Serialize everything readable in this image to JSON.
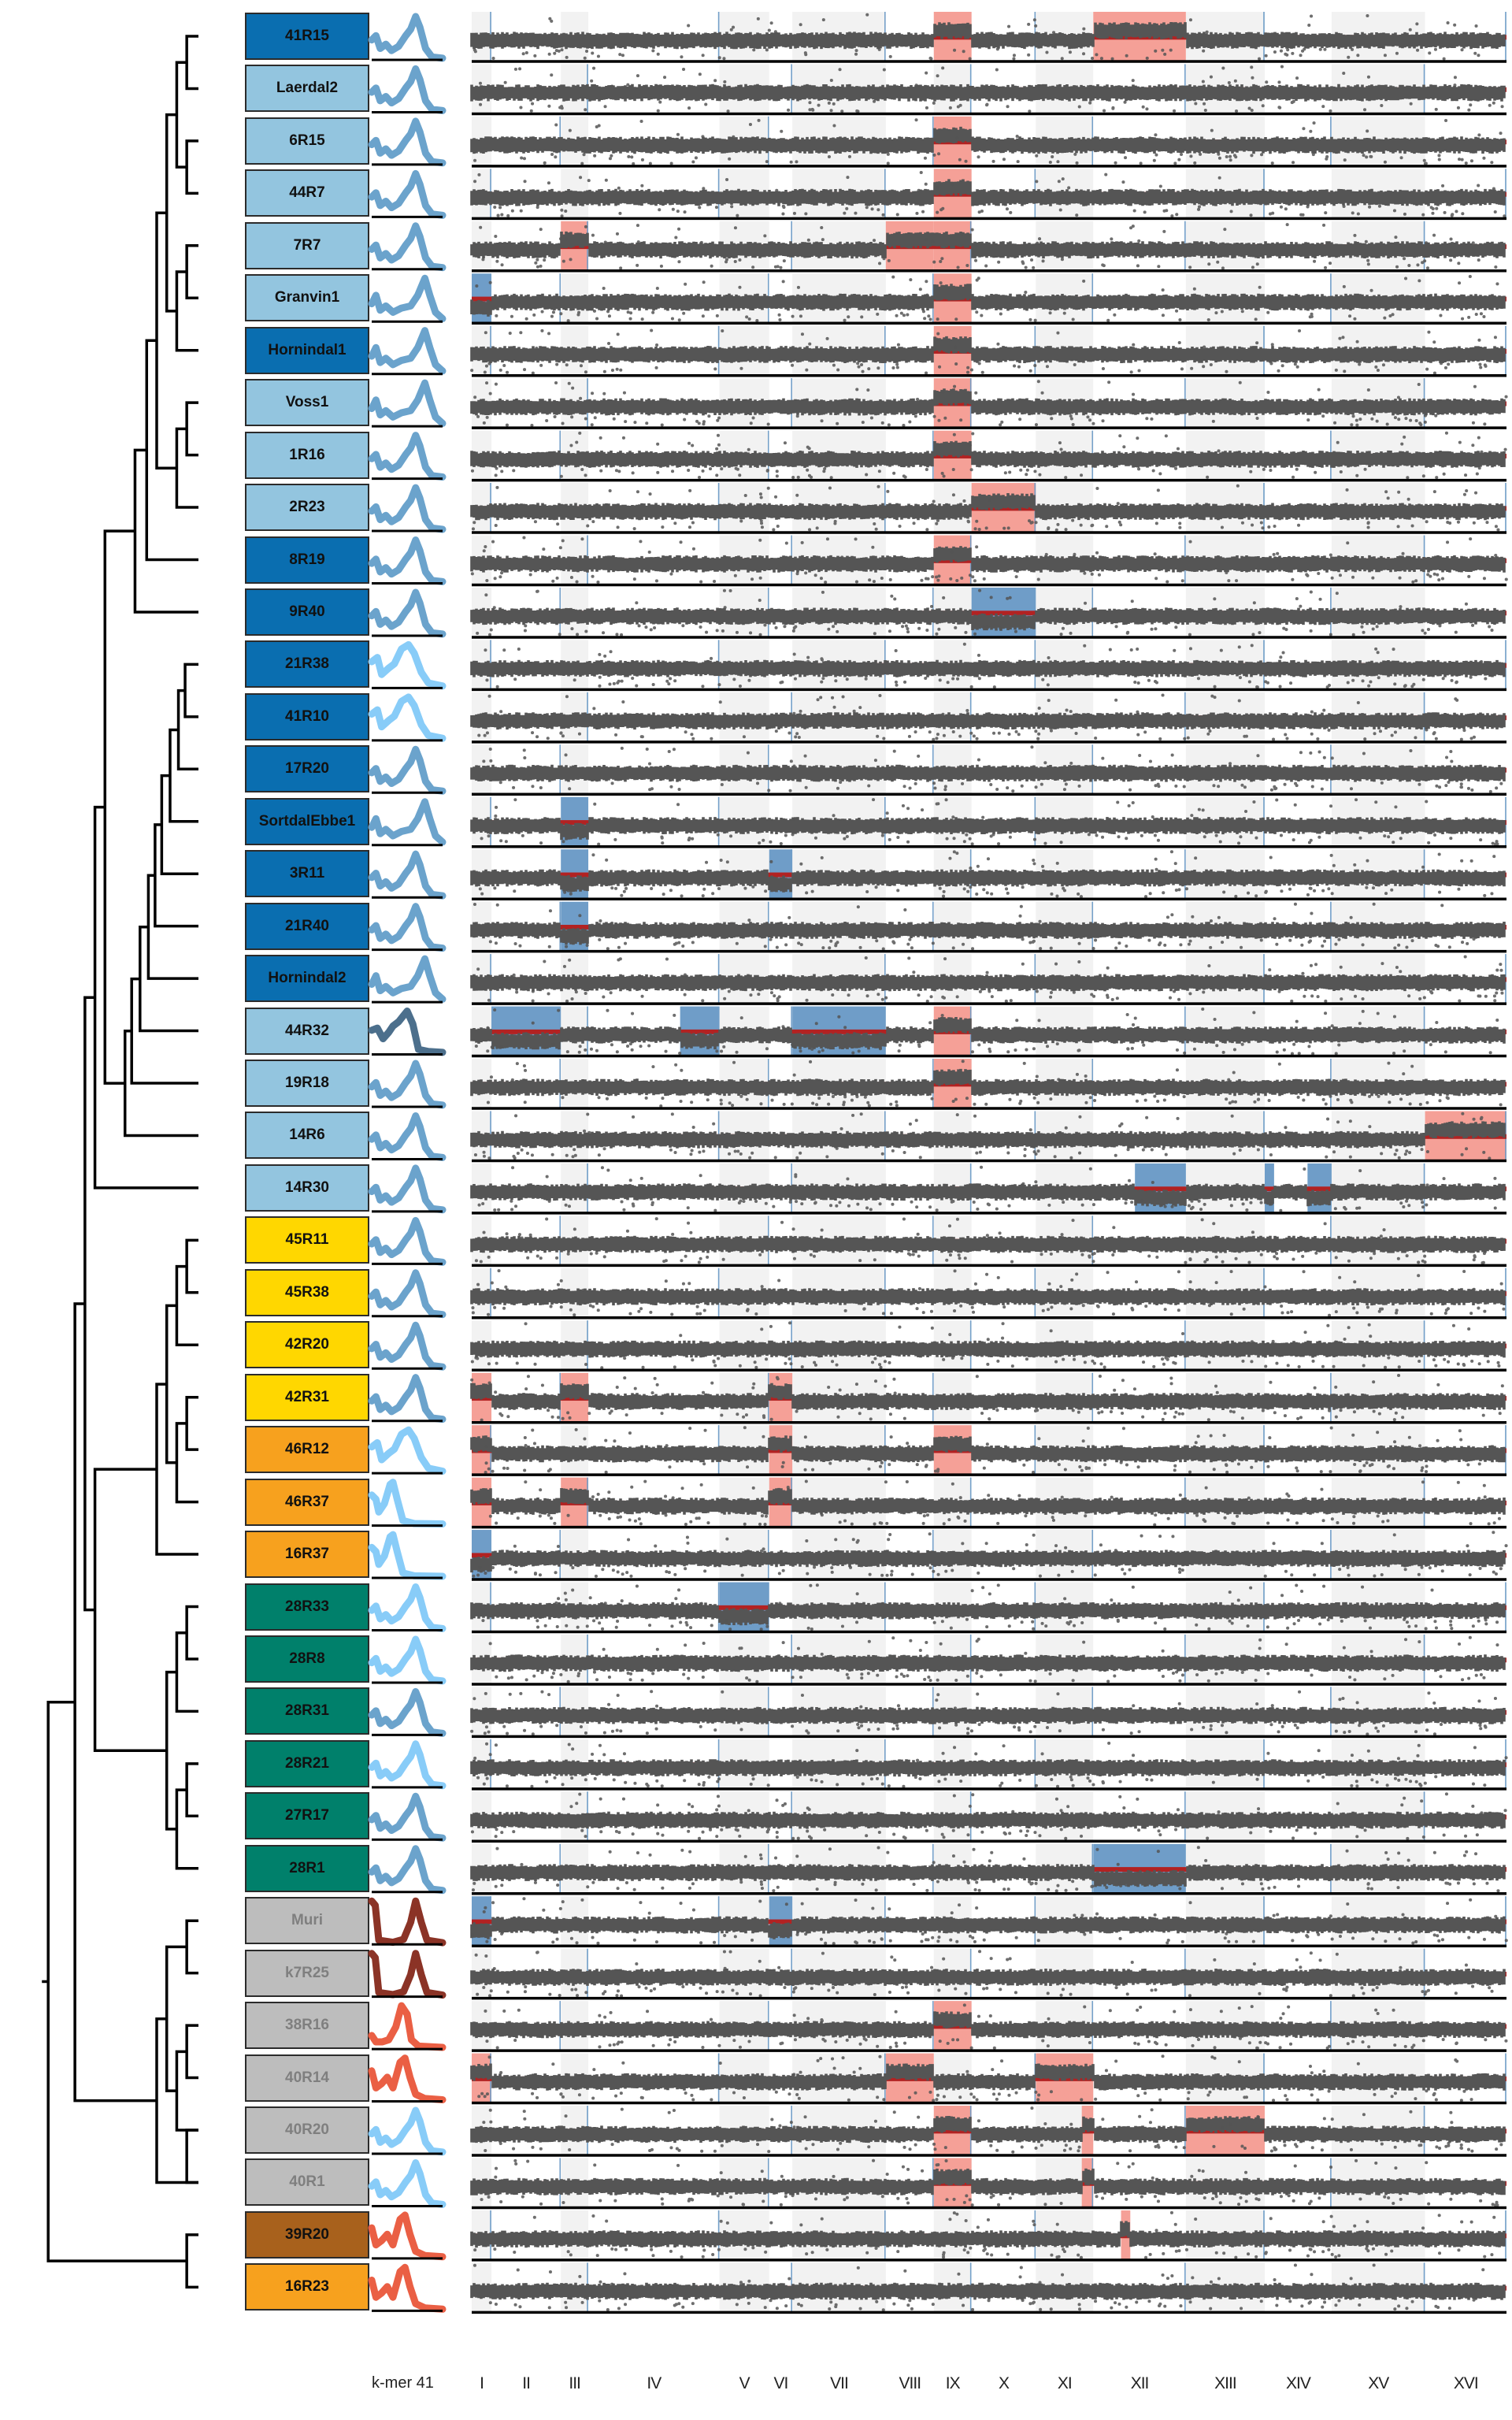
{
  "chart_data": {
    "type": "heatmap",
    "title": "",
    "description": "Per-strain dendrogram, k-mer 41 spectrum, and genome-wide copy-number (read depth) profile across 16 chromosomes with highlighted gains and losses",
    "kmer_axis_label": "k-mer 41",
    "chromosomes": [
      "I",
      "II",
      "III",
      "IV",
      "V",
      "VI",
      "VII",
      "VIII",
      "IX",
      "X",
      "XI",
      "XII",
      "XIII",
      "XIV",
      "XV",
      "XVI"
    ],
    "chromosome_relative_sizes": [
      0.23,
      0.81,
      0.32,
      1.53,
      0.58,
      0.27,
      1.09,
      0.56,
      0.44,
      0.75,
      0.67,
      1.08,
      0.92,
      0.78,
      1.09,
      0.95
    ],
    "legend": {
      "gain_color": "#f5a097",
      "loss_color": "#6f9dc8",
      "scatter_color": "#555555",
      "baseline_color": "#b22222",
      "shade_color": "#f2f2f2"
    },
    "group_colors": {
      "dark_blue": "#0a6eb0",
      "light_blue": "#93c5df",
      "yellow": "#ffd700",
      "orange": "#f7a11e",
      "teal": "#00806b",
      "grey": "#bdbdbd",
      "brown": "#a8611c"
    },
    "kmer_colors": {
      "mid_blue": "#6ba3cc",
      "sky_blue": "#88ccf8",
      "slate": "#4c6f8c",
      "maroon": "#8b3326",
      "red_orange": "#ea5f44"
    },
    "samples": [
      {
        "name": "41R15",
        "group": "dark_blue",
        "kmer": "mid_blue",
        "kmer_shape": "a",
        "gains": [
          [
            "IX"
          ],
          [
            "XII"
          ]
        ],
        "losses": []
      },
      {
        "name": "Laerdal2",
        "group": "light_blue",
        "kmer": "mid_blue",
        "kmer_shape": "a",
        "gains": [],
        "losses": []
      },
      {
        "name": "6R15",
        "group": "light_blue",
        "kmer": "mid_blue",
        "kmer_shape": "a",
        "gains": [
          [
            "IX"
          ]
        ],
        "losses": []
      },
      {
        "name": "44R7",
        "group": "light_blue",
        "kmer": "mid_blue",
        "kmer_shape": "a",
        "gains": [
          [
            "IX"
          ]
        ],
        "losses": []
      },
      {
        "name": "7R7",
        "group": "light_blue",
        "kmer": "mid_blue",
        "kmer_shape": "a",
        "gains": [
          [
            "III"
          ],
          [
            "VIII"
          ],
          [
            "IX"
          ]
        ],
        "losses": []
      },
      {
        "name": "Granvin1",
        "group": "light_blue",
        "kmer": "mid_blue",
        "kmer_shape": "b",
        "gains": [
          [
            "IX"
          ]
        ],
        "losses": [
          [
            "I"
          ]
        ]
      },
      {
        "name": "Hornindal1",
        "group": "dark_blue",
        "kmer": "mid_blue",
        "kmer_shape": "b",
        "gains": [
          [
            "IX"
          ]
        ],
        "losses": []
      },
      {
        "name": "Voss1",
        "group": "light_blue",
        "kmer": "mid_blue",
        "kmer_shape": "b",
        "gains": [
          [
            "IX"
          ]
        ],
        "losses": []
      },
      {
        "name": "1R16",
        "group": "light_blue",
        "kmer": "mid_blue",
        "kmer_shape": "a",
        "gains": [
          [
            "IX"
          ]
        ],
        "losses": []
      },
      {
        "name": "2R23",
        "group": "light_blue",
        "kmer": "mid_blue",
        "kmer_shape": "a",
        "gains": [
          [
            "X"
          ]
        ],
        "losses": []
      },
      {
        "name": "8R19",
        "group": "dark_blue",
        "kmer": "mid_blue",
        "kmer_shape": "a",
        "gains": [
          [
            "IX"
          ]
        ],
        "losses": []
      },
      {
        "name": "9R40",
        "group": "dark_blue",
        "kmer": "mid_blue",
        "kmer_shape": "a",
        "gains": [],
        "losses": [
          [
            "X"
          ]
        ]
      },
      {
        "name": "21R38",
        "group": "dark_blue",
        "kmer": "sky_blue",
        "kmer_shape": "c",
        "gains": [],
        "losses": []
      },
      {
        "name": "41R10",
        "group": "dark_blue",
        "kmer": "sky_blue",
        "kmer_shape": "c",
        "gains": [],
        "losses": []
      },
      {
        "name": "17R20",
        "group": "dark_blue",
        "kmer": "mid_blue",
        "kmer_shape": "a",
        "gains": [],
        "losses": []
      },
      {
        "name": "SortdalEbbe1",
        "group": "dark_blue",
        "kmer": "mid_blue",
        "kmer_shape": "b",
        "gains": [],
        "losses": [
          [
            "III"
          ]
        ]
      },
      {
        "name": "3R11",
        "group": "dark_blue",
        "kmer": "mid_blue",
        "kmer_shape": "a",
        "gains": [],
        "losses": [
          [
            "III"
          ],
          [
            "VI"
          ]
        ]
      },
      {
        "name": "21R40",
        "group": "dark_blue",
        "kmer": "mid_blue",
        "kmer_shape": "a",
        "gains": [],
        "losses": [
          [
            "III"
          ]
        ]
      },
      {
        "name": "Hornindal2",
        "group": "dark_blue",
        "kmer": "mid_blue",
        "kmer_shape": "b",
        "gains": [],
        "losses": []
      },
      {
        "name": "44R32",
        "group": "light_blue",
        "kmer": "slate",
        "kmer_shape": "d",
        "gains": [
          [
            "IX"
          ]
        ],
        "losses": [
          [
            "II"
          ],
          [
            "IV",
            0.7,
            1.0
          ],
          [
            "VII"
          ]
        ]
      },
      {
        "name": "19R18",
        "group": "light_blue",
        "kmer": "mid_blue",
        "kmer_shape": "a",
        "gains": [
          [
            "IX"
          ]
        ],
        "losses": []
      },
      {
        "name": "14R6",
        "group": "light_blue",
        "kmer": "mid_blue",
        "kmer_shape": "a",
        "gains": [
          [
            "XVI"
          ]
        ],
        "losses": []
      },
      {
        "name": "14R30",
        "group": "light_blue",
        "kmer": "mid_blue",
        "kmer_shape": "a",
        "gains": [],
        "losses": [
          [
            "XII",
            0.45,
            1.0
          ],
          [
            "XIV",
            0.0,
            0.14
          ],
          [
            "XIV",
            0.64,
            1.0
          ]
        ]
      },
      {
        "name": "45R11",
        "group": "yellow",
        "kmer": "mid_blue",
        "kmer_shape": "a",
        "gains": [],
        "losses": []
      },
      {
        "name": "45R38",
        "group": "yellow",
        "kmer": "mid_blue",
        "kmer_shape": "a",
        "gains": [],
        "losses": []
      },
      {
        "name": "42R20",
        "group": "yellow",
        "kmer": "mid_blue",
        "kmer_shape": "a",
        "gains": [],
        "losses": []
      },
      {
        "name": "42R31",
        "group": "yellow",
        "kmer": "mid_blue",
        "kmer_shape": "a",
        "gains": [
          [
            "I"
          ],
          [
            "III"
          ],
          [
            "VI"
          ]
        ],
        "losses": []
      },
      {
        "name": "46R12",
        "group": "orange",
        "kmer": "sky_blue",
        "kmer_shape": "c",
        "gains": [
          [
            "I"
          ],
          [
            "VI"
          ],
          [
            "IX"
          ]
        ],
        "losses": []
      },
      {
        "name": "46R37",
        "group": "orange",
        "kmer": "sky_blue",
        "kmer_shape": "e",
        "gains": [
          [
            "I"
          ],
          [
            "III"
          ],
          [
            "VI"
          ]
        ],
        "losses": []
      },
      {
        "name": "16R37",
        "group": "orange",
        "kmer": "sky_blue",
        "kmer_shape": "e",
        "gains": [],
        "losses": [
          [
            "I"
          ]
        ]
      },
      {
        "name": "28R33",
        "group": "teal",
        "kmer": "sky_blue",
        "kmer_shape": "a",
        "gains": [],
        "losses": [
          [
            "V"
          ]
        ]
      },
      {
        "name": "28R8",
        "group": "teal",
        "kmer": "sky_blue",
        "kmer_shape": "a",
        "gains": [],
        "losses": []
      },
      {
        "name": "28R31",
        "group": "teal",
        "kmer": "mid_blue",
        "kmer_shape": "a",
        "gains": [],
        "losses": []
      },
      {
        "name": "28R21",
        "group": "teal",
        "kmer": "sky_blue",
        "kmer_shape": "a",
        "gains": [],
        "losses": []
      },
      {
        "name": "27R17",
        "group": "teal",
        "kmer": "mid_blue",
        "kmer_shape": "a",
        "gains": [],
        "losses": []
      },
      {
        "name": "28R1",
        "group": "teal",
        "kmer": "mid_blue",
        "kmer_shape": "a",
        "gains": [],
        "losses": [
          [
            "XII"
          ]
        ]
      },
      {
        "name": "Muri",
        "group": "grey",
        "kmer": "maroon",
        "kmer_shape": "f",
        "gains": [],
        "losses": [
          [
            "I"
          ],
          [
            "VI"
          ]
        ]
      },
      {
        "name": "k7R25",
        "group": "grey",
        "kmer": "maroon",
        "kmer_shape": "f",
        "gains": [],
        "losses": []
      },
      {
        "name": "38R16",
        "group": "grey",
        "kmer": "red_orange",
        "kmer_shape": "g",
        "gains": [
          [
            "IX"
          ]
        ],
        "losses": []
      },
      {
        "name": "40R14",
        "group": "grey",
        "kmer": "red_orange",
        "kmer_shape": "h",
        "gains": [
          [
            "I"
          ],
          [
            "VIII"
          ],
          [
            "XI"
          ]
        ],
        "losses": []
      },
      {
        "name": "40R20",
        "group": "grey",
        "kmer": "sky_blue",
        "kmer_shape": "a",
        "gains": [
          [
            "IX"
          ],
          [
            "XI",
            0.8,
            1.0
          ],
          [
            "XIII"
          ]
        ],
        "losses": []
      },
      {
        "name": "40R1",
        "group": "grey",
        "kmer": "sky_blue",
        "kmer_shape": "a",
        "gains": [
          [
            "IX"
          ],
          [
            "XI",
            0.8,
            1.0
          ]
        ],
        "losses": []
      },
      {
        "name": "39R20",
        "group": "brown",
        "kmer": "red_orange",
        "kmer_shape": "h",
        "gains": [
          [
            "XII",
            0.3,
            0.4
          ]
        ],
        "losses": []
      },
      {
        "name": "16R23",
        "group": "orange",
        "kmer": "red_orange",
        "kmer_shape": "h",
        "gains": [],
        "losses": []
      }
    ],
    "dendrogram": {
      "note": "merge nodes: [childA, childB, height]; children are leaf indices or 'n<k>' references to earlier nodes; height = relative distance (leaf = 0)",
      "max_height": 1.0,
      "nodes": [
        [
          0,
          1,
          0.07
        ],
        [
          2,
          3,
          0.07
        ],
        [
          "n0",
          "n1",
          0.13
        ],
        [
          4,
          5,
          0.07
        ],
        [
          "n3",
          6,
          0.13
        ],
        [
          "n2",
          "n4",
          0.19
        ],
        [
          7,
          8,
          0.07
        ],
        [
          "n6",
          9,
          0.13
        ],
        [
          "n5",
          "n7",
          0.25
        ],
        [
          "n8",
          10,
          0.31
        ],
        [
          "n9",
          11,
          0.38
        ],
        [
          12,
          13,
          0.08
        ],
        [
          "n11",
          14,
          0.12
        ],
        [
          "n12",
          15,
          0.17
        ],
        [
          "n13",
          16,
          0.22
        ],
        [
          "n14",
          17,
          0.26
        ],
        [
          "n15",
          18,
          0.3
        ],
        [
          "n16",
          19,
          0.35
        ],
        [
          "n17",
          20,
          0.4
        ],
        [
          "n18",
          21,
          0.44
        ],
        [
          "n10",
          "n19",
          0.56
        ],
        [
          "n20",
          22,
          0.62
        ],
        [
          23,
          24,
          0.07
        ],
        [
          "n22",
          25,
          0.13
        ],
        [
          26,
          27,
          0.07
        ],
        [
          "n24",
          28,
          0.13
        ],
        [
          "n23",
          "n25",
          0.19
        ],
        [
          "n26",
          29,
          0.25
        ],
        [
          30,
          31,
          0.07
        ],
        [
          "n28",
          32,
          0.13
        ],
        [
          33,
          34,
          0.07
        ],
        [
          "n30",
          35,
          0.13
        ],
        [
          "n29",
          "n31",
          0.19
        ],
        [
          "n27",
          "n32",
          0.62
        ],
        [
          "n21",
          "n33",
          0.68
        ],
        [
          36,
          37,
          0.07
        ],
        [
          38,
          39,
          0.07
        ],
        [
          "n36",
          40,
          0.13
        ],
        [
          40,
          41,
          0.07
        ],
        [
          "n35",
          "n37",
          0.19
        ],
        [
          "n39",
          41,
          0.25
        ],
        [
          "n34",
          "n40",
          0.74
        ],
        [
          42,
          43,
          0.07
        ],
        [
          "n41",
          "n42",
          0.9
        ]
      ]
    }
  }
}
